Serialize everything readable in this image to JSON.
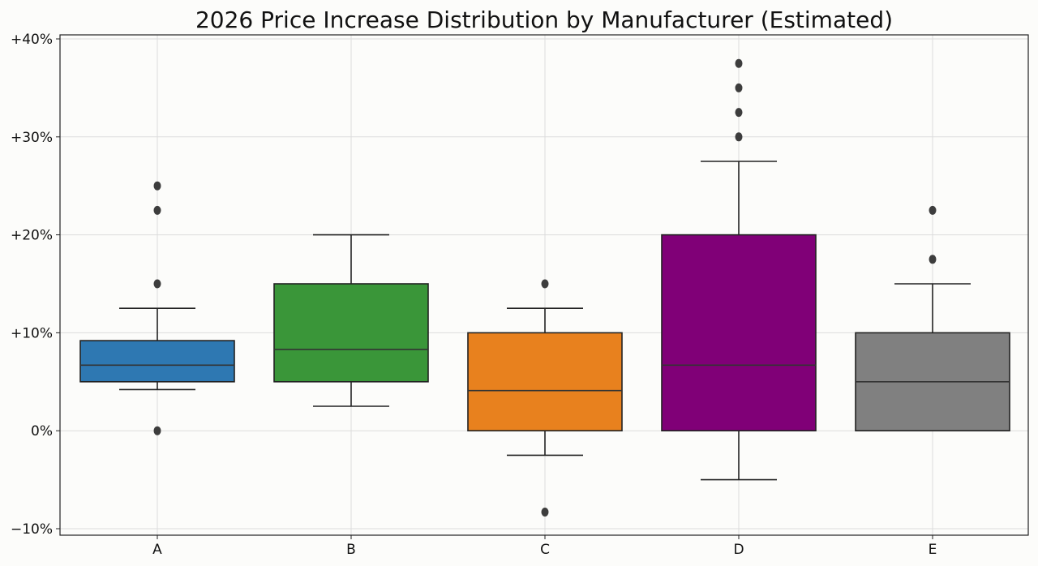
{
  "chart_data": {
    "type": "box",
    "title": "2026 Price Increase Distribution by Manufacturer (Estimated)",
    "xlabel": "",
    "ylabel": "",
    "ylim": [
      -10,
      40
    ],
    "yticks": [
      -10,
      0,
      10,
      20,
      30,
      40
    ],
    "ytick_labels": [
      "−10%",
      "0%",
      "+10%",
      "+20%",
      "+30%",
      "+40%"
    ],
    "grid": true,
    "categories": [
      "A",
      "B",
      "C",
      "D",
      "E"
    ],
    "series": [
      {
        "name": "A",
        "color": "#2e78b2",
        "whisker_low": 4.2,
        "q1": 5.0,
        "median": 6.7,
        "q3": 9.2,
        "whisker_high": 12.5,
        "outliers": [
          0.0,
          15.0,
          22.5,
          25.0
        ]
      },
      {
        "name": "B",
        "color": "#3a9639",
        "whisker_low": 2.5,
        "q1": 5.0,
        "median": 8.3,
        "q3": 15.0,
        "whisker_high": 20.0,
        "outliers": []
      },
      {
        "name": "C",
        "color": "#e8811e",
        "whisker_low": -2.5,
        "q1": 0.0,
        "median": 4.1,
        "q3": 10.0,
        "whisker_high": 12.5,
        "outliers": [
          -8.3,
          15.0
        ]
      },
      {
        "name": "D",
        "color": "#800077",
        "whisker_low": -5.0,
        "q1": 0.0,
        "median": 6.7,
        "q3": 20.0,
        "whisker_high": 27.5,
        "outliers": [
          30.0,
          32.5,
          35.0,
          37.5
        ]
      },
      {
        "name": "E",
        "color": "#808080",
        "whisker_low": 0.0,
        "q1": 0.0,
        "median": 5.0,
        "q3": 10.0,
        "whisker_high": 15.0,
        "outliers": [
          17.5,
          22.5
        ]
      }
    ]
  }
}
